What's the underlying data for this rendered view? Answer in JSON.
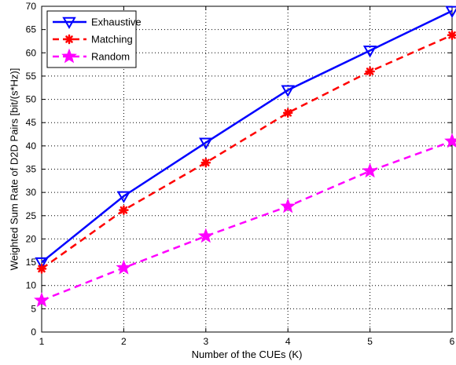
{
  "chart_data": {
    "type": "line",
    "title": "",
    "xlabel": "Number of the CUEs (K)",
    "ylabel": "Weighted Sum Rate of D2D Pairs [bit/(s*Hz)]",
    "xlim": [
      1,
      6
    ],
    "ylim": [
      0,
      70
    ],
    "x": [
      1,
      2,
      3,
      4,
      5,
      6
    ],
    "xticks": [
      1,
      2,
      3,
      4,
      5,
      6
    ],
    "yticks": [
      0,
      5,
      10,
      15,
      20,
      25,
      30,
      35,
      40,
      45,
      50,
      55,
      60,
      65,
      70
    ],
    "grid": true,
    "legend_position": "top-left",
    "series": [
      {
        "name": "Exhaustive",
        "values": [
          15.0,
          29.2,
          40.7,
          52.0,
          60.5,
          69.0
        ],
        "color": "#0000ff",
        "dash": "solid",
        "marker": "triangle-down"
      },
      {
        "name": "Matching",
        "values": [
          13.6,
          26.2,
          36.4,
          47.1,
          56.0,
          63.8
        ],
        "color": "#ff0000",
        "dash": "dashed",
        "marker": "asterisk"
      },
      {
        "name": "Random",
        "values": [
          6.8,
          13.8,
          20.6,
          27.0,
          34.6,
          41.0
        ],
        "color": "#ff00ff",
        "dash": "dashed",
        "marker": "star"
      }
    ]
  }
}
